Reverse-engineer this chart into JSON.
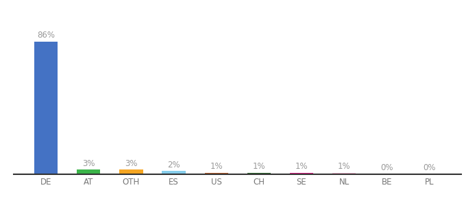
{
  "categories": [
    "DE",
    "AT",
    "OTH",
    "ES",
    "US",
    "CH",
    "SE",
    "NL",
    "BE",
    "PL"
  ],
  "values": [
    86,
    3,
    3,
    2,
    1,
    1,
    1,
    1,
    0,
    0
  ],
  "labels": [
    "86%",
    "3%",
    "3%",
    "2%",
    "1%",
    "1%",
    "1%",
    "1%",
    "0%",
    "0%"
  ],
  "bar_colors": [
    "#4472c4",
    "#3cb54a",
    "#f5a623",
    "#87ceeb",
    "#c0622a",
    "#2d6a2d",
    "#e91e8c",
    "#f4b8d0",
    "#bbbbbb",
    "#bbbbbb"
  ],
  "label_fontsize": 8.5,
  "tick_fontsize": 8.5,
  "label_color": "#999999",
  "tick_color": "#777777",
  "background_color": "#ffffff",
  "ylim": [
    0,
    97
  ],
  "bar_width": 0.55
}
